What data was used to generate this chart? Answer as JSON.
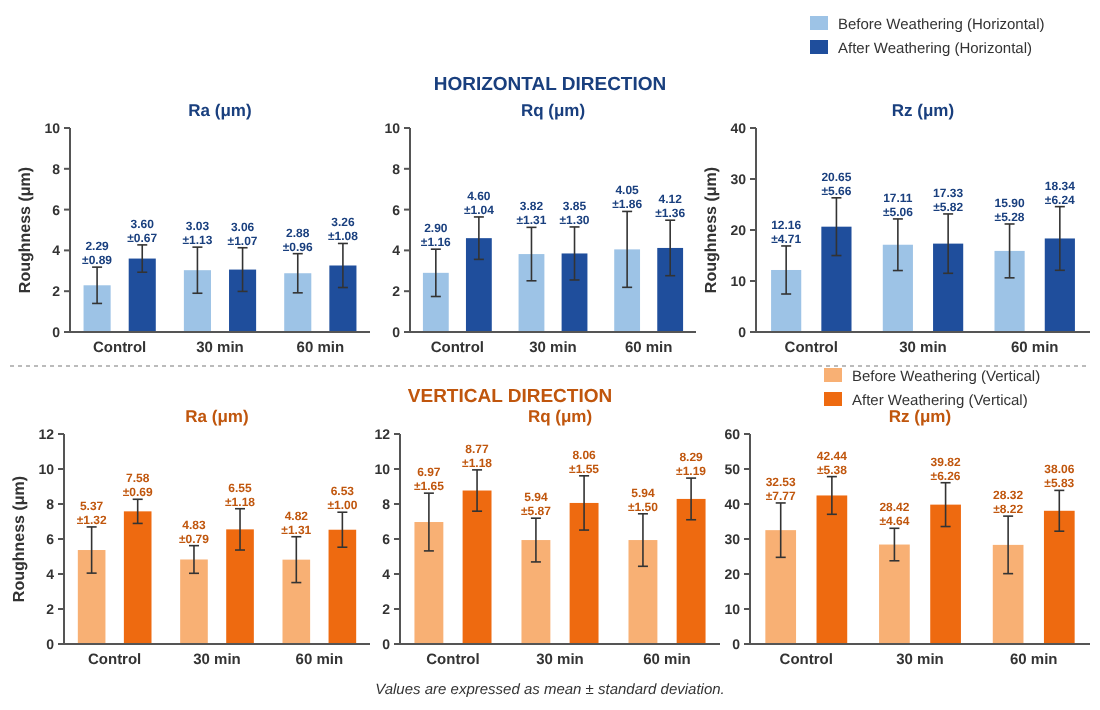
{
  "chart_data": [
    {
      "type": "bar",
      "title": "Ra (μm)",
      "ylabel": "Roughness (μm)",
      "categories": [
        "Control",
        "30 min",
        "60 min"
      ],
      "ylim": [
        0,
        10
      ],
      "yticks": [
        0,
        2,
        4,
        6,
        8,
        10
      ],
      "grid": false,
      "legend": false,
      "series": [
        {
          "color": "#9dc3e6",
          "values": [
            2.29,
            3.03,
            2.88
          ],
          "errors": [
            0.89,
            1.13,
            0.96
          ],
          "value_labels": [
            "2.29 ±0.89",
            "3.03 ±1.13",
            "2.88 ±0.96"
          ]
        },
        {
          "color": "#1f4e9c",
          "values": [
            3.6,
            3.06,
            3.26
          ],
          "errors": [
            0.67,
            1.07,
            1.08
          ],
          "value_labels": [
            "3.60 ±0.67",
            "3.06 ±1.07",
            "3.26 ±1.08"
          ]
        }
      ]
    },
    {
      "type": "bar",
      "title": "Rq (μm)",
      "annotations": [
        "HORIZONTAL DIRECTION"
      ],
      "categories": [
        "Control",
        "30 min",
        "60 min"
      ],
      "ylim": [
        0,
        10
      ],
      "yticks": [
        0,
        2,
        4,
        6,
        8,
        10
      ],
      "grid": false,
      "legend": false,
      "series": [
        {
          "color": "#9dc3e6",
          "values": [
            2.9,
            3.82,
            4.05
          ],
          "errors": [
            1.16,
            1.31,
            1.86
          ],
          "value_labels": [
            "2.90 ±1.16",
            "3.82 ±1.31",
            "4.05 ±1.86"
          ]
        },
        {
          "color": "#1f4e9c",
          "values": [
            4.6,
            3.85,
            4.12
          ],
          "errors": [
            1.04,
            1.3,
            1.36
          ],
          "value_labels": [
            "4.60 ±1.04",
            "3.85 ±1.30",
            "4.12 ±1.36"
          ]
        }
      ]
    },
    {
      "type": "bar",
      "title": "Rz (μm)",
      "ylabel": "Roughness (μm)",
      "categories": [
        "Control",
        "30 min",
        "60 min"
      ],
      "ylim": [
        0,
        40
      ],
      "yticks": [
        0,
        10,
        20,
        30,
        40
      ],
      "grid": false,
      "legend": "top right",
      "series": [
        {
          "name": "Before Weathering (Horizontal)",
          "color": "#9dc3e6",
          "values": [
            12.16,
            17.11,
            15.9
          ],
          "errors": [
            4.71,
            5.06,
            5.28
          ],
          "value_labels": [
            "12.16 ±4.71",
            "17.11 ±5.06",
            "15.90 ±5.28"
          ]
        },
        {
          "name": "After Weathering (Horizontal)",
          "color": "#1f4e9c",
          "values": [
            20.65,
            17.33,
            18.34
          ],
          "errors": [
            5.66,
            5.82,
            6.24
          ],
          "value_labels": [
            "20.65 ±5.66",
            "17.33 ±5.82",
            "18.34 ±6.24"
          ]
        }
      ]
    },
    {
      "type": "bar",
      "title": "Ra (μm)",
      "ylabel": "Roughness (μm)",
      "categories": [
        "Control",
        "30 min",
        "60 min"
      ],
      "ylim": [
        0,
        12
      ],
      "yticks": [
        0,
        2,
        4,
        6,
        8,
        10,
        12
      ],
      "grid": false,
      "legend": false,
      "series": [
        {
          "color": "#f8b074",
          "values": [
            5.37,
            4.83,
            4.82
          ],
          "errors": [
            1.32,
            0.79,
            1.31
          ],
          "value_labels": [
            "5.37 ±1.32",
            "4.83 ±0.79",
            "4.82 ±1.31"
          ]
        },
        {
          "color": "#ee6a10",
          "values": [
            7.58,
            6.55,
            6.53
          ],
          "errors": [
            0.69,
            1.18,
            1.0
          ],
          "value_labels": [
            "7.58 ±0.69",
            "6.55 ±1.18",
            "6.53 ±1.00"
          ]
        }
      ]
    },
    {
      "type": "bar",
      "title": "Rq (μm)",
      "annotations": [
        "VERTICAL DIRECTION",
        "Values are expressed as mean ± standard deviation."
      ],
      "categories": [
        "Control",
        "30 min",
        "60 min"
      ],
      "ylim": [
        0,
        12
      ],
      "yticks": [
        0,
        2,
        4,
        6,
        8,
        10,
        12
      ],
      "grid": false,
      "legend": false,
      "series": [
        {
          "color": "#f8b074",
          "values": [
            6.97,
            5.94,
            5.94
          ],
          "errors": [
            1.65,
            1.25,
            1.5
          ],
          "value_labels": [
            "6.97 ±1.65",
            "5.94 ±5.87",
            "5.94 ±1.50"
          ]
        },
        {
          "color": "#ee6a10",
          "values": [
            8.77,
            8.06,
            8.29
          ],
          "errors": [
            1.18,
            1.55,
            1.19
          ],
          "value_labels": [
            "8.77 ±1.18",
            "8.06 ±1.55",
            "8.29 ±1.19"
          ]
        }
      ]
    },
    {
      "type": "bar",
      "title": "Rz (μm)",
      "categories": [
        "Control",
        "30 min",
        "60 min"
      ],
      "ylim": [
        0,
        60
      ],
      "yticks": [
        0,
        10,
        20,
        30,
        40,
        50,
        60
      ],
      "grid": false,
      "legend": "top right",
      "series": [
        {
          "name": "Before Weathering (Vertical)",
          "color": "#f8b074",
          "values": [
            32.53,
            28.42,
            28.32
          ],
          "errors": [
            7.77,
            4.64,
            8.22
          ],
          "value_labels": [
            "32.53 ±7.77",
            "28.42 ±4.64",
            "28.32 ±8.22"
          ]
        },
        {
          "name": "After Weathering (Vertical)",
          "color": "#ee6a10",
          "values": [
            42.44,
            39.82,
            38.06
          ],
          "errors": [
            5.38,
            6.26,
            5.83
          ],
          "value_labels": [
            "42.44 ±5.38",
            "39.82 ±6.26",
            "38.06 ±5.83"
          ]
        }
      ]
    }
  ]
}
